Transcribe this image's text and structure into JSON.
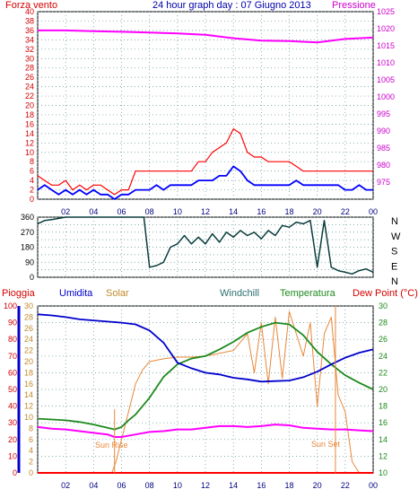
{
  "header": {
    "title": "24 hour graph day : 07 Giugno 2013",
    "left_label": "Forza vento",
    "right_label": "Pressione"
  },
  "colors": {
    "wind": "#ff0000",
    "gust": "#0000ff",
    "pressure": "#ff00ff",
    "direction": "#0b3d3d",
    "humidity": "#0000cc",
    "solar": "#e8883a",
    "temperature": "#1d8a1d",
    "dewpoint": "#ff00ff",
    "rain": "#ff0000",
    "axis_left_red": "#d40000",
    "axis_right_magenta": "#cc00cc",
    "grid": "#5f8f8f",
    "plot_bg": "#ffffff"
  },
  "hour_ticks": [
    "02",
    "04",
    "06",
    "08",
    "10",
    "12",
    "14",
    "16",
    "18",
    "20",
    "22",
    "00"
  ],
  "panel3_labels": {
    "rain": "Pioggia",
    "humidity": "Umidita",
    "solar": "Solar",
    "windchill": "Windchill",
    "temperature": "Temperatura",
    "dewpoint": "Dew Point (°C)"
  },
  "annotations": {
    "sunrise": "Sun Rise",
    "sunset": "Sun Set"
  },
  "chart_data": [
    {
      "type": "line",
      "title": "24 hour graph day : 07 Giugno 2013",
      "x_range": [
        0,
        24
      ],
      "left_axis": {
        "label": "Forza vento",
        "ylim": [
          0,
          40
        ],
        "ticks": [
          "0",
          "2",
          "4",
          "6",
          "8",
          "10",
          "12",
          "14",
          "16",
          "18",
          "20",
          "22",
          "24",
          "26",
          "28",
          "30",
          "32",
          "34",
          "36",
          "38",
          "40"
        ]
      },
      "right_axis": {
        "label": "Pressione",
        "ylim": [
          970,
          1025
        ],
        "ticks": [
          "975",
          "980",
          "985",
          "990",
          "995",
          "1000",
          "1005",
          "1010",
          "1015",
          "1020",
          "1025"
        ]
      },
      "series": [
        {
          "axis": "left",
          "x": [
            0,
            0.5,
            1,
            1.5,
            2,
            2.5,
            3,
            3.5,
            4,
            4.5,
            5,
            5.5,
            6,
            6.5,
            7,
            7.5,
            8,
            8.5,
            9,
            9.5,
            10,
            10.5,
            11,
            11.5,
            12,
            12.5,
            13,
            13.5,
            14,
            14.5,
            15,
            15.5,
            16,
            16.5,
            17,
            17.5,
            18,
            18.5,
            19,
            19.5,
            20,
            20.5,
            21,
            21.5,
            22,
            22.5,
            23,
            23.5,
            24
          ],
          "values": [
            5,
            4,
            3,
            3,
            4,
            2,
            3,
            2,
            3,
            3,
            2,
            1,
            2,
            2,
            6,
            6,
            6,
            6,
            6,
            6,
            6,
            6,
            6,
            8,
            8,
            10,
            11,
            12,
            15,
            14,
            10,
            9,
            9,
            8,
            8,
            8,
            8,
            7,
            6,
            6,
            6,
            6,
            6,
            6,
            6,
            6,
            6,
            6,
            6
          ]
        },
        {
          "axis": "left",
          "x": [
            0,
            0.5,
            1,
            1.5,
            2,
            2.5,
            3,
            3.5,
            4,
            4.5,
            5,
            5.5,
            6,
            6.5,
            7,
            7.5,
            8,
            8.5,
            9,
            9.5,
            10,
            10.5,
            11,
            11.5,
            12,
            12.5,
            13,
            13.5,
            14,
            14.5,
            15,
            15.5,
            16,
            16.5,
            17,
            17.5,
            18,
            18.5,
            19,
            19.5,
            20,
            20.5,
            21,
            21.5,
            22,
            22.5,
            23,
            23.5,
            24
          ],
          "values": [
            2,
            3,
            2,
            1,
            2,
            1,
            2,
            1,
            2,
            1,
            1,
            0,
            1,
            1,
            2,
            2,
            2,
            3,
            2,
            3,
            3,
            3,
            3,
            4,
            4,
            4,
            5,
            5,
            7,
            6,
            4,
            3,
            3,
            3,
            3,
            3,
            3,
            4,
            3,
            3,
            3,
            3,
            3,
            3,
            2,
            2,
            3,
            2,
            2
          ]
        },
        {
          "axis": "right",
          "x": [
            0,
            2,
            4,
            6,
            8,
            10,
            12,
            14,
            16,
            18,
            20,
            22,
            24
          ],
          "values": [
            1019.5,
            1019.5,
            1019.3,
            1019.1,
            1018.9,
            1018.6,
            1018.2,
            1017.2,
            1016.5,
            1016.4,
            1016.0,
            1017.0,
            1017.4
          ]
        }
      ]
    },
    {
      "type": "line",
      "x_range": [
        0,
        24
      ],
      "left_axis": {
        "ylim": [
          0,
          360
        ],
        "ticks": [
          "0",
          "45",
          "90",
          "135",
          "180",
          "225",
          "270",
          "315",
          "360"
        ]
      },
      "right_axis": {
        "ticks": [
          "N",
          "W",
          "S",
          "E",
          "N"
        ]
      },
      "series": [
        {
          "x": [
            0,
            0.5,
            1,
            2,
            3,
            4,
            5,
            6,
            7,
            7.6,
            8,
            8.5,
            9,
            9.5,
            10,
            10.5,
            11,
            11.5,
            12,
            12.5,
            13,
            13.5,
            14,
            14.5,
            15,
            15.5,
            16,
            16.5,
            17,
            17.5,
            18,
            18.5,
            19,
            19.5,
            20,
            20.5,
            21,
            21.5,
            22,
            22.5,
            23,
            23.5,
            24
          ],
          "values": [
            320,
            340,
            345,
            360,
            360,
            360,
            360,
            360,
            360,
            360,
            60,
            70,
            90,
            180,
            200,
            250,
            200,
            240,
            200,
            260,
            210,
            270,
            240,
            280,
            250,
            270,
            230,
            280,
            250,
            310,
            300,
            330,
            320,
            340,
            60,
            340,
            60,
            40,
            30,
            20,
            40,
            50,
            30
          ]
        }
      ]
    },
    {
      "type": "line",
      "x_range": [
        0,
        24
      ],
      "axes": {
        "rain": {
          "label": "Pioggia",
          "ylim": [
            0,
            100
          ],
          "ticks": [
            "0",
            "10",
            "20",
            "30",
            "40",
            "50",
            "60",
            "70",
            "80",
            "90",
            "100"
          ]
        },
        "humidity_solar": {
          "label": "Umidita / Solar",
          "ylim": [
            0,
            30
          ],
          "ticks": [
            "0",
            "2",
            "4",
            "6",
            "8",
            "10",
            "12",
            "14",
            "16",
            "18",
            "20",
            "22",
            "24",
            "26",
            "28",
            "30"
          ]
        },
        "temperature": {
          "label": "Dew Point (°C)",
          "ylim": [
            10,
            30
          ],
          "ticks": [
            "10",
            "12",
            "14",
            "16",
            "18",
            "20",
            "22",
            "24",
            "26",
            "28",
            "30"
          ]
        }
      },
      "series": [
        {
          "axis": "humidity_solar",
          "x": [
            0,
            1,
            2,
            3,
            4,
            5,
            6,
            7,
            8,
            9,
            10,
            11,
            12,
            13,
            14,
            15,
            16,
            17,
            18,
            19,
            20,
            21,
            22,
            23,
            24
          ],
          "values": [
            28.5,
            28.3,
            28.0,
            27.6,
            27.4,
            27.2,
            27.0,
            26.7,
            25.6,
            23.4,
            19.8,
            18.8,
            18.0,
            17.7,
            17.1,
            16.8,
            16.4,
            16.5,
            16.6,
            17.2,
            18.2,
            19.5,
            20.7,
            21.6,
            22.2
          ]
        },
        {
          "axis": "humidity_solar",
          "x": [
            0,
            5.3,
            5.6,
            6,
            6.6,
            7,
            7.5,
            8,
            9,
            10,
            11,
            12,
            13,
            14,
            15,
            15.5,
            16,
            16.5,
            17,
            17.5,
            18,
            18.5,
            19,
            19.5,
            20,
            20.5,
            21,
            21.5,
            22,
            22.5,
            23
          ],
          "values": [
            0,
            0,
            2,
            6,
            12,
            16,
            18.5,
            20,
            20.5,
            20.8,
            20.8,
            21,
            21.5,
            22,
            25,
            18,
            27,
            16,
            28,
            17,
            29,
            25,
            21,
            27,
            12,
            25,
            28,
            14,
            11,
            2,
            0
          ]
        },
        {
          "axis": "temperature",
          "x": [
            0,
            1,
            2,
            3,
            4,
            5,
            5.5,
            6,
            6.5,
            7,
            8,
            9,
            10,
            11,
            12,
            13,
            14,
            15,
            16,
            17,
            18,
            19,
            20,
            21,
            22,
            23,
            24
          ],
          "values": [
            16.5,
            16.4,
            16.3,
            16.1,
            15.8,
            15.4,
            15.2,
            15.5,
            16.3,
            17.0,
            19.0,
            21.5,
            23.0,
            23.7,
            24.0,
            24.8,
            25.7,
            26.8,
            27.5,
            28.0,
            27.8,
            26.5,
            24.5,
            23.0,
            21.7,
            20.8,
            20.0
          ]
        },
        {
          "axis": "temperature",
          "x": [
            0,
            1,
            2,
            3,
            4,
            5,
            5.5,
            6,
            7,
            8,
            9,
            10,
            11,
            12,
            13,
            14,
            15,
            16,
            17,
            18,
            19,
            20,
            21,
            22,
            23,
            24
          ],
          "values": [
            15.5,
            15.3,
            15.2,
            15.0,
            14.8,
            14.6,
            14.3,
            14.3,
            14.6,
            14.9,
            15.0,
            15.2,
            15.2,
            15.4,
            15.6,
            15.6,
            15.5,
            15.6,
            15.8,
            15.7,
            15.4,
            15.3,
            15.2,
            15.2,
            15.1,
            15.0
          ]
        },
        {
          "axis": "rain",
          "x": [
            0,
            24
          ],
          "values": [
            0,
            0
          ]
        }
      ]
    }
  ]
}
